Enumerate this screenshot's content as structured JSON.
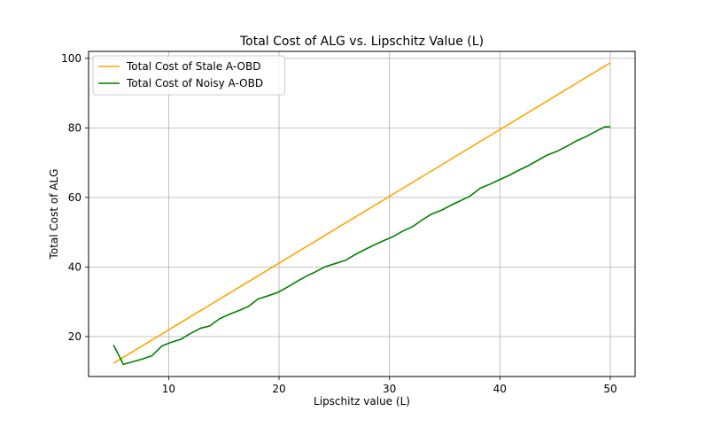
{
  "chart_data": {
    "type": "line",
    "title": "Total Cost of ALG vs. Lipschitz Value (L)",
    "xlabel": "Lipschitz value (L)",
    "ylabel": "Total Cost of ALG",
    "xlim": [
      2.75,
      52.25
    ],
    "ylim": [
      8.5,
      102.0
    ],
    "xticks": [
      10,
      20,
      30,
      40,
      50
    ],
    "yticks": [
      20,
      40,
      60,
      80,
      100
    ],
    "grid": true,
    "legend_position": "top-left",
    "series": [
      {
        "name": "Total Cost of Stale A-OBD",
        "color": "#ffa500",
        "x": [
          5,
          50
        ],
        "y": [
          12.3,
          98.7
        ]
      },
      {
        "name": "Total Cost of Noisy A-OBD",
        "color": "#008000",
        "x": [
          5,
          5.9,
          6.8,
          7.6,
          8.5,
          9.4,
          10.2,
          11.1,
          12,
          12.9,
          13.7,
          14.6,
          15.5,
          16.4,
          17.2,
          18.1,
          19,
          19.9,
          20.7,
          21.6,
          22.5,
          23.3,
          24.2,
          25.1,
          26,
          26.8,
          27.7,
          28.6,
          29.5,
          30.3,
          31.2,
          32.1,
          32.9,
          33.8,
          34.7,
          35.6,
          36.4,
          37.3,
          38.2,
          39.1,
          39.9,
          40.8,
          41.7,
          42.5,
          43.4,
          44.3,
          45.2,
          46,
          46.9,
          47.8,
          48.7,
          49.5,
          50
        ],
        "y": [
          17.6,
          12.0,
          12.8,
          13.5,
          14.5,
          17.3,
          18.3,
          19.2,
          20.9,
          22.4,
          23.0,
          25.1,
          26.4,
          27.5,
          28.6,
          30.8,
          31.7,
          32.7,
          34.1,
          35.8,
          37.4,
          38.6,
          40.1,
          41.0,
          41.9,
          43.4,
          44.9,
          46.3,
          47.6,
          48.7,
          50.3,
          51.6,
          53.4,
          55.2,
          56.3,
          57.8,
          59.0,
          60.4,
          62.6,
          63.8,
          65.0,
          66.3,
          67.8,
          69.0,
          70.6,
          72.2,
          73.3,
          74.6,
          76.2,
          77.5,
          79.0,
          80.3,
          80.3
        ]
      }
    ]
  }
}
